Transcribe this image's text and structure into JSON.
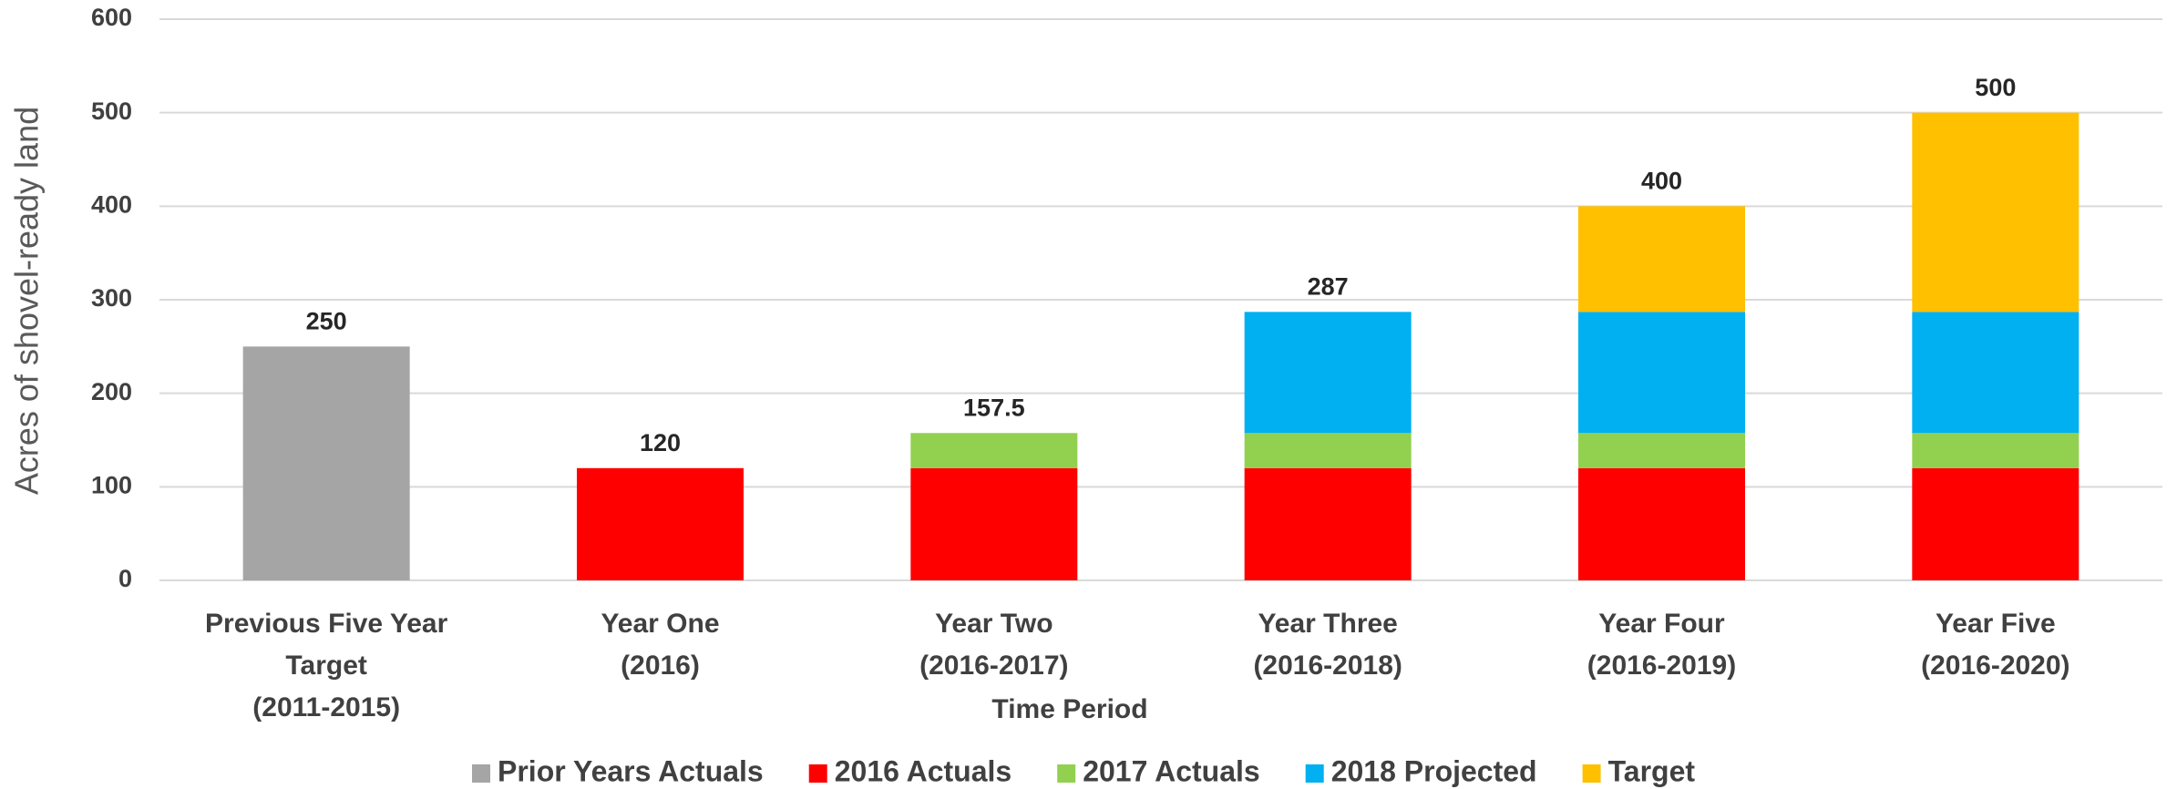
{
  "chart_data": {
    "type": "stacked_bar",
    "x_label": "Time Period",
    "y_label": "Acres of shovel-ready land",
    "categories": [
      "Previous Five Year Target (2011-2015)",
      "Year One (2016)",
      "Year Two (2016-2017)",
      "Year Three (2016-2018)",
      "Year Four (2016-2019)",
      "Year Five (2016-2020)"
    ],
    "series": [
      {
        "name": "Prior Years Actuals",
        "color": "#a5a5a5",
        "values": [
          250,
          null,
          null,
          null,
          null,
          null
        ]
      },
      {
        "name": "2016 Actuals",
        "color": "#ff0000",
        "values": [
          null,
          120,
          120,
          120,
          120,
          120
        ]
      },
      {
        "name": "2017 Actuals",
        "color": "#92d050",
        "values": [
          null,
          null,
          37.5,
          37.5,
          37.5,
          37.5
        ]
      },
      {
        "name": "2018 Projected",
        "color": "#00b0f0",
        "values": [
          null,
          null,
          null,
          129.5,
          129.5,
          129.5
        ]
      },
      {
        "name": "Target",
        "color": "#ffc000",
        "values": [
          null,
          null,
          null,
          null,
          113,
          213
        ]
      }
    ],
    "totals": [
      250,
      120,
      157.5,
      287,
      400,
      500
    ],
    "ylim": [
      0,
      600
    ],
    "yticks": [
      0,
      100,
      200,
      300,
      400,
      500,
      600
    ],
    "grid": true,
    "legend": "bottom"
  }
}
